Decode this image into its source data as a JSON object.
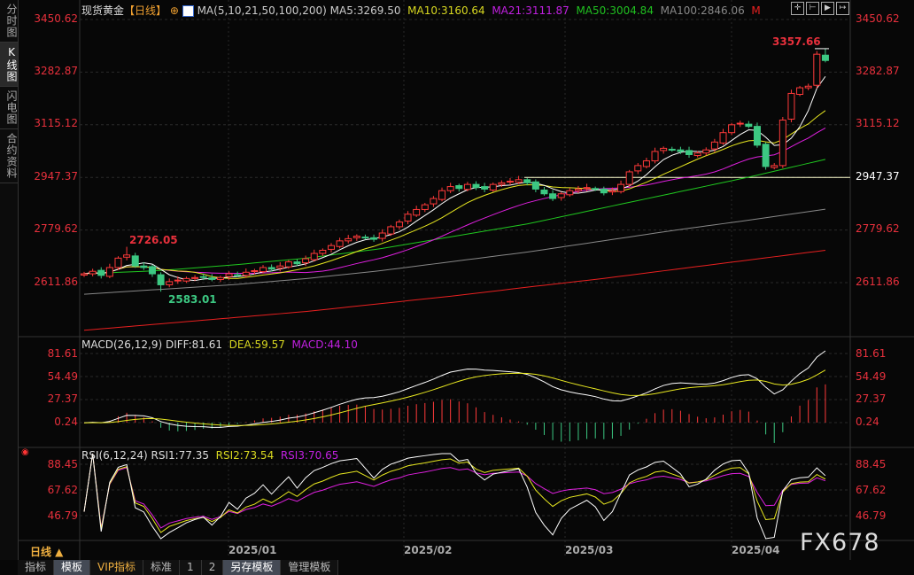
{
  "sidebar": {
    "tabs": [
      {
        "label": "分时图"
      },
      {
        "label": "K线图"
      },
      {
        "label": "闪电图"
      },
      {
        "label": "合约资料"
      }
    ],
    "selected": 1
  },
  "header": {
    "instrument": "现货黄金",
    "period": "【日线】",
    "ma_label": "MA(5,10,21,50,100,200)",
    "ma5": "MA5:3269.50",
    "ma10": "MA10:3160.64",
    "ma21": "MA21:3111.87",
    "ma50": "MA50:3004.84",
    "ma100": "MA100:2846.06",
    "more": "M",
    "icons": [
      "crosshair-icon",
      "zoom-range-icon",
      "play-icon",
      "shift-right-icon"
    ]
  },
  "main_axis": {
    "labels": [
      "3450.62",
      "3282.87",
      "3115.12",
      "2947.37",
      "2779.62",
      "2611.86"
    ]
  },
  "annotations": {
    "high": "3357.66",
    "mid_high": "2726.05",
    "low": "2583.01"
  },
  "macd": {
    "label": "MACD(26,12,9)",
    "diff": "DIFF:81.61",
    "dea": "DEA:59.57",
    "macd": "MACD:44.10",
    "axis": [
      "81.61",
      "54.49",
      "27.37",
      "0.24"
    ]
  },
  "rsi": {
    "label": "RSI(6,12,24)",
    "rsi1": "RSI1:77.35",
    "rsi2": "RSI2:73.54",
    "rsi3": "RSI3:70.65",
    "axis": [
      "88.45",
      "67.62",
      "46.79"
    ]
  },
  "dates": [
    "2025/01",
    "2025/02",
    "2025/03",
    "2025/04"
  ],
  "period_selector": "日线 ▲",
  "watermark": "FX678",
  "bottom_tabs": [
    "指标",
    "模板",
    "VIP指标",
    "标准",
    "1",
    "2",
    "另存模板",
    "管理模板"
  ],
  "colors": {
    "up": "#ff3a3a",
    "down": "#3cc882",
    "ma5": "#ffffff",
    "ma10": "#e8e820",
    "ma21": "#e020e0",
    "ma50": "#20c820",
    "ma100": "#888888",
    "ma200": "#e82020"
  },
  "chart_data": {
    "type": "candlestick",
    "support_line": 2947.37,
    "closes": [
      2640,
      2648,
      2635,
      2660,
      2690,
      2700,
      2665,
      2660,
      2640,
      2605,
      2615,
      2620,
      2625,
      2628,
      2630,
      2622,
      2628,
      2640,
      2635,
      2645,
      2650,
      2660,
      2655,
      2665,
      2678,
      2672,
      2688,
      2705,
      2715,
      2730,
      2745,
      2752,
      2760,
      2755,
      2750,
      2770,
      2790,
      2805,
      2830,
      2845,
      2860,
      2880,
      2905,
      2918,
      2912,
      2925,
      2915,
      2910,
      2925,
      2930,
      2935,
      2940,
      2930,
      2910,
      2895,
      2880,
      2895,
      2905,
      2910,
      2915,
      2910,
      2898,
      2905,
      2925,
      2965,
      2985,
      3000,
      3030,
      3040,
      3035,
      3030,
      3020,
      3025,
      3035,
      3060,
      3090,
      3115,
      3120,
      3110,
      3050,
      2982,
      2985,
      3130,
      3215,
      3233,
      3238,
      3340,
      3320
    ],
    "ma50": [
      2640,
      2650,
      2668,
      2690,
      2720,
      2760,
      2800,
      2850,
      2900,
      2950,
      3004.84
    ],
    "ma100": [
      2575,
      2590,
      2605,
      2625,
      2650,
      2680,
      2710,
      2745,
      2780,
      2812,
      2846.06
    ],
    "ma200": [
      2460,
      2480,
      2500,
      2520,
      2545,
      2570,
      2598,
      2625,
      2655,
      2685,
      2715
    ]
  }
}
